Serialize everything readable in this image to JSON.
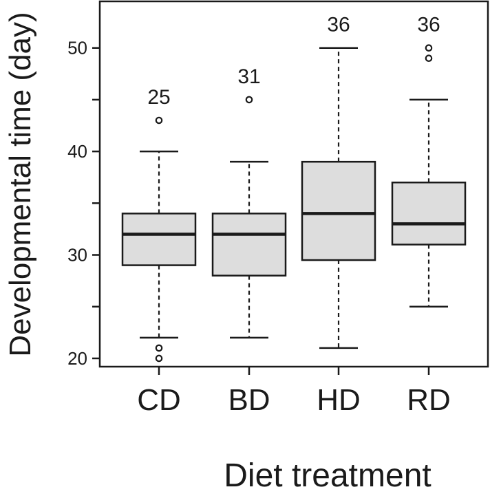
{
  "chart_data": {
    "type": "box",
    "title": "",
    "xlabel": "Diet treatment",
    "ylabel": "Developmental time (day)",
    "ylim": [
      19.2,
      54.5
    ],
    "yticks": [
      20,
      30,
      40,
      50
    ],
    "grid": false,
    "categories": [
      "CD",
      "BD",
      "HD",
      "RD"
    ],
    "box_fill": "#dddddd",
    "line_color": "#1a1a1a",
    "boxes": [
      {
        "label": "CD",
        "whisker_low": 22,
        "q1": 29,
        "median": 32,
        "q3": 34,
        "whisker_high": 40,
        "outliers": [
          43,
          21,
          20
        ],
        "annotation": "25"
      },
      {
        "label": "BD",
        "whisker_low": 22,
        "q1": 28,
        "median": 32,
        "q3": 34,
        "whisker_high": 39,
        "outliers": [
          45
        ],
        "annotation": "31"
      },
      {
        "label": "HD",
        "whisker_low": 21,
        "q1": 29.5,
        "median": 34,
        "q3": 39,
        "whisker_high": 50,
        "outliers": [],
        "annotation": "36"
      },
      {
        "label": "RD",
        "whisker_low": 25,
        "q1": 31,
        "median": 33,
        "q3": 37,
        "whisker_high": 45,
        "outliers": [
          50,
          49
        ],
        "annotation": "36"
      }
    ]
  }
}
